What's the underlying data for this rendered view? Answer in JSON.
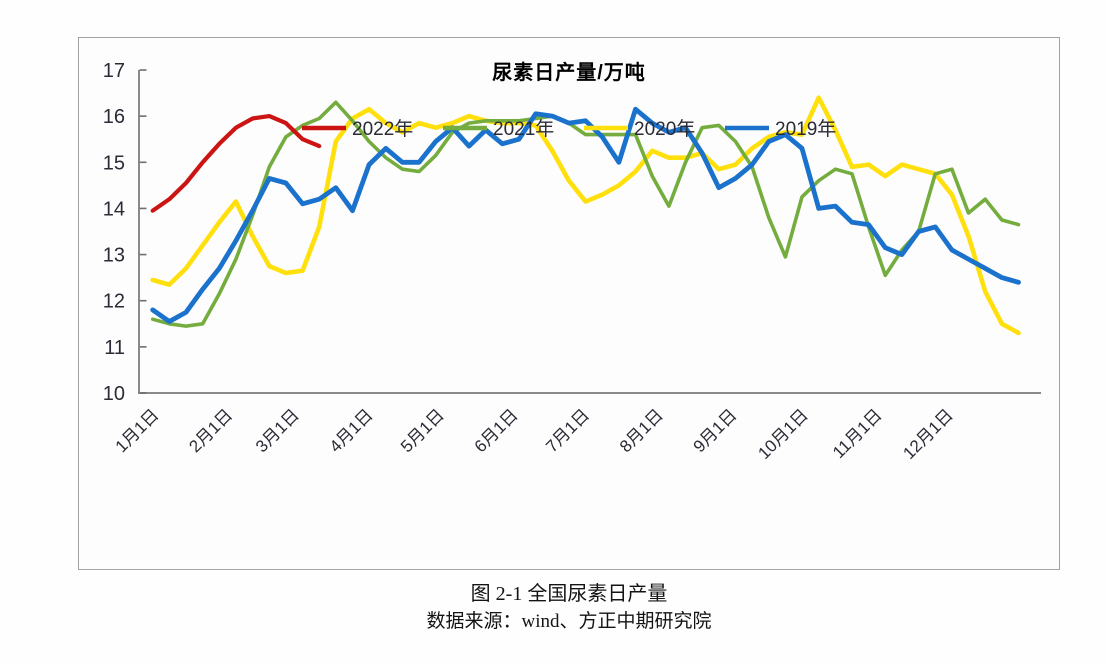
{
  "figure": {
    "title": "尿素日产量/万吨"
  },
  "caption": {
    "line1": "图 2-1 全国尿素日产量",
    "line2": "数据来源：wind、方正中期研究院"
  },
  "colors": {
    "axis": "#8a8a8a",
    "tick": "#6f6f6f",
    "tick_label": "#2b2b36",
    "title": "#000000",
    "figure_border": "#a3a3a3",
    "background": "#fdfdfd"
  },
  "chart_data": {
    "type": "line",
    "title": "尿素日产量/万吨",
    "ylabel": "",
    "xlabel": "",
    "ylim": [
      10,
      17
    ],
    "y_ticks": [
      10,
      11,
      12,
      13,
      14,
      15,
      16,
      17
    ],
    "grid": false,
    "legend_position": "top",
    "x_unit": "weeks since Jan 1",
    "x_tick_labels": [
      "1月1日",
      "2月1日",
      "3月1日",
      "4月1日",
      "5月1日",
      "6月1日",
      "7月1日",
      "8月1日",
      "9月1日",
      "10月1日",
      "11月1日",
      "12月1日"
    ],
    "x_tick_weeks": [
      0,
      4.43,
      8.43,
      12.86,
      17.14,
      21.57,
      25.86,
      30.29,
      34.71,
      39.0,
      43.43,
      47.71
    ],
    "series": [
      {
        "name": "2022年",
        "color": "#cc1414",
        "width": 4.2,
        "z": 3,
        "values": [
          13.95,
          14.2,
          14.55,
          15.0,
          15.4,
          15.75,
          15.95,
          16.0,
          15.85,
          15.5,
          15.35
        ]
      },
      {
        "name": "2021年",
        "color": "#74ac3d",
        "width": 3.6,
        "z": 2,
        "values": [
          11.6,
          11.5,
          11.45,
          11.5,
          12.15,
          12.9,
          13.85,
          14.9,
          15.55,
          15.8,
          15.95,
          16.3,
          15.9,
          15.45,
          15.1,
          14.85,
          14.8,
          15.15,
          15.65,
          15.85,
          15.9,
          15.9,
          15.9,
          15.95,
          16.0,
          15.85,
          15.6,
          15.6,
          15.6,
          15.6,
          14.7,
          14.05,
          15.0,
          15.75,
          15.8,
          15.45,
          14.9,
          13.8,
          12.95,
          14.25,
          14.6,
          14.85,
          14.75,
          13.6,
          12.55,
          13.1,
          13.5,
          14.75,
          14.85,
          13.9,
          14.2,
          13.75,
          13.65
        ]
      },
      {
        "name": "2020年",
        "color": "#ffe00d",
        "width": 4.6,
        "z": 1,
        "values": [
          12.45,
          12.35,
          12.7,
          13.2,
          13.7,
          14.15,
          13.4,
          12.75,
          12.6,
          12.65,
          13.6,
          15.45,
          15.95,
          16.15,
          15.85,
          15.65,
          15.85,
          15.75,
          15.85,
          16.0,
          15.9,
          15.85,
          15.85,
          15.8,
          15.25,
          14.6,
          14.15,
          14.3,
          14.5,
          14.8,
          15.25,
          15.1,
          15.1,
          15.2,
          14.85,
          14.95,
          15.3,
          15.55,
          15.65,
          15.6,
          16.4,
          15.7,
          14.9,
          14.95,
          14.7,
          14.95,
          14.85,
          14.75,
          14.3,
          13.4,
          12.2,
          11.5,
          11.3
        ]
      },
      {
        "name": "2019年",
        "color": "#1a72cc",
        "width": 4.8,
        "z": 4,
        "values": [
          11.8,
          11.55,
          11.75,
          12.25,
          12.7,
          13.3,
          13.95,
          14.65,
          14.55,
          14.1,
          14.2,
          14.45,
          13.95,
          14.95,
          15.3,
          15.0,
          15.0,
          15.45,
          15.75,
          15.35,
          15.7,
          15.4,
          15.5,
          16.05,
          16.0,
          15.85,
          15.9,
          15.55,
          15.0,
          16.15,
          15.85,
          15.65,
          15.75,
          15.2,
          14.45,
          14.65,
          14.95,
          15.45,
          15.6,
          15.3,
          14.0,
          14.05,
          13.7,
          13.65,
          13.15,
          13.0,
          13.5,
          13.6,
          13.1,
          12.9,
          12.7,
          12.5,
          12.4
        ]
      }
    ]
  }
}
